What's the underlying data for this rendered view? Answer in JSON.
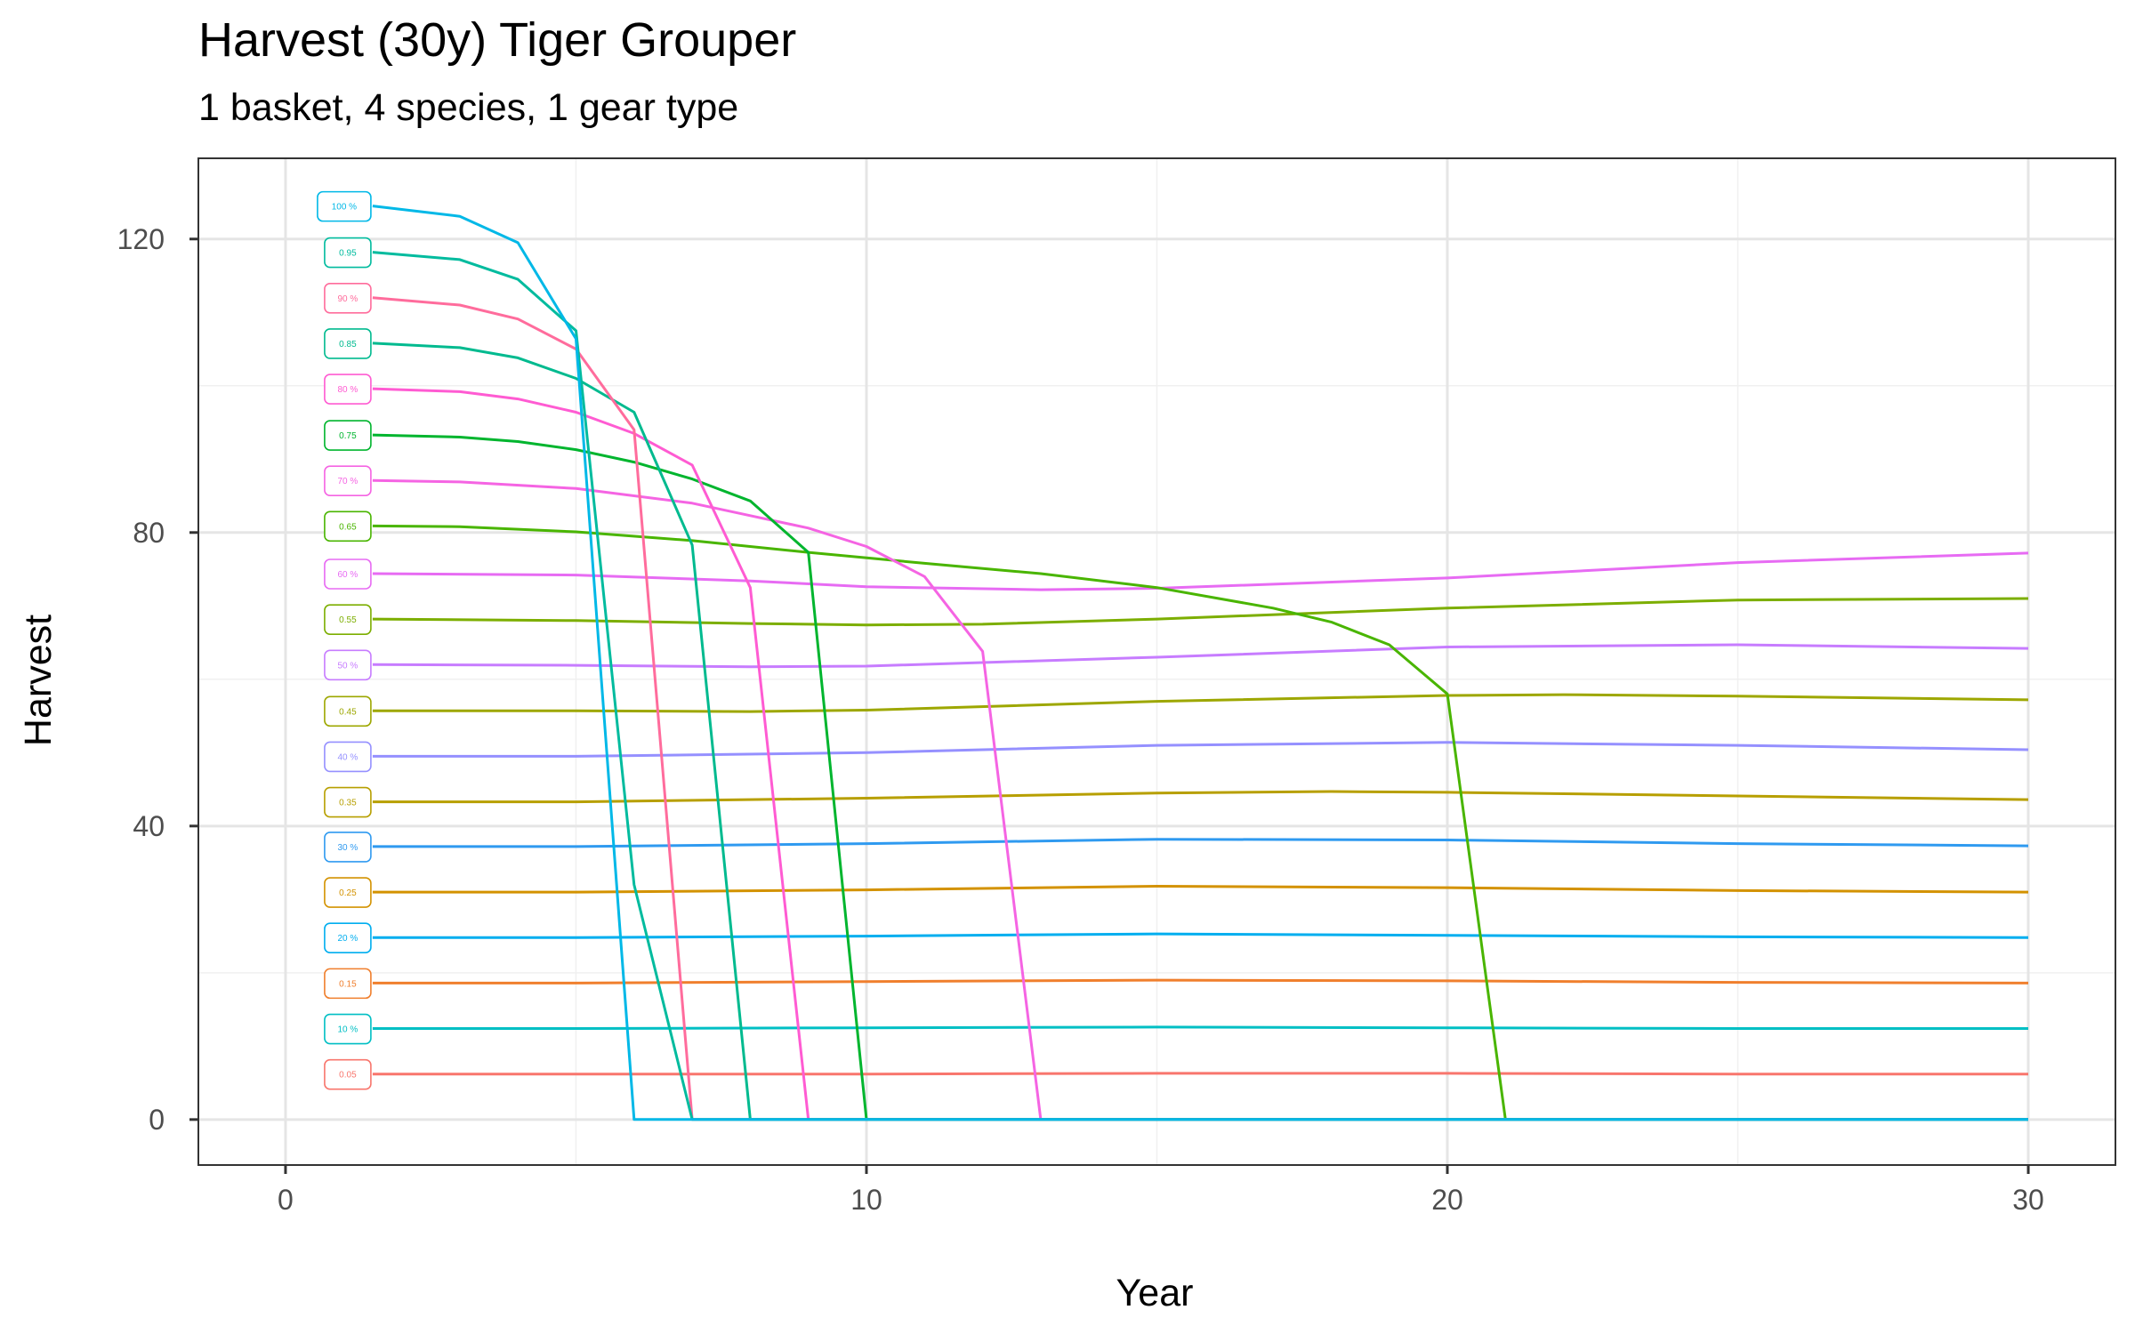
{
  "chart_data": {
    "type": "line",
    "title": "Harvest (30y) Tiger Grouper",
    "subtitle": "1 basket, 4 species, 1 gear type",
    "xlabel": "Year",
    "ylabel": "Harvest",
    "xlim": [
      -1.5,
      31.5
    ],
    "ylim": [
      -6.2,
      131
    ],
    "xticks": [
      0,
      10,
      20,
      30
    ],
    "yticks": [
      0,
      40,
      80,
      120
    ],
    "grid": true,
    "legend": "none",
    "series": [
      {
        "name": "0.05",
        "label": "0.05",
        "color": "#F8766D",
        "x": [
          1.5,
          5,
          10,
          15,
          20,
          25,
          30
        ],
        "y": [
          6.2,
          6.2,
          6.2,
          6.3,
          6.3,
          6.2,
          6.2
        ]
      },
      {
        "name": "10 %",
        "label": "10 %",
        "color": "#00BFC4",
        "x": [
          1.5,
          5,
          10,
          15,
          20,
          25,
          30
        ],
        "y": [
          12.4,
          12.4,
          12.5,
          12.6,
          12.5,
          12.4,
          12.4
        ]
      },
      {
        "name": "0.15",
        "label": "0.15",
        "color": "#F07F2D",
        "x": [
          1.5,
          5,
          10,
          15,
          20,
          25,
          30
        ],
        "y": [
          18.6,
          18.6,
          18.8,
          19.0,
          18.9,
          18.7,
          18.6
        ]
      },
      {
        "name": "20 %",
        "label": "20 %",
        "color": "#00AEEF",
        "x": [
          1.5,
          5,
          10,
          15,
          20,
          25,
          30
        ],
        "y": [
          24.8,
          24.8,
          25.0,
          25.3,
          25.1,
          24.9,
          24.8
        ]
      },
      {
        "name": "0.25",
        "label": "0.25",
        "color": "#D39200",
        "x": [
          1.5,
          5,
          10,
          15,
          20,
          25,
          30
        ],
        "y": [
          31.0,
          31.0,
          31.3,
          31.8,
          31.6,
          31.2,
          31.0
        ]
      },
      {
        "name": "30 %",
        "label": "30 %",
        "color": "#2F9AF0",
        "x": [
          1.5,
          5,
          10,
          15,
          20,
          25,
          30
        ],
        "y": [
          37.2,
          37.2,
          37.6,
          38.2,
          38.1,
          37.6,
          37.3
        ]
      },
      {
        "name": "0.35",
        "label": "0.35",
        "color": "#B79F00",
        "x": [
          1.5,
          5,
          10,
          15,
          18,
          20,
          25,
          30
        ],
        "y": [
          43.3,
          43.3,
          43.8,
          44.5,
          44.7,
          44.6,
          44.1,
          43.6
        ]
      },
      {
        "name": "40 %",
        "label": "40 %",
        "color": "#9590FF",
        "x": [
          1.5,
          5,
          10,
          15,
          20,
          25,
          30
        ],
        "y": [
          49.5,
          49.5,
          50.0,
          51.0,
          51.4,
          51.0,
          50.4
        ]
      },
      {
        "name": "0.45",
        "label": "0.45",
        "color": "#9DA700",
        "x": [
          1.5,
          5,
          8,
          10,
          15,
          20,
          22,
          25,
          30
        ],
        "y": [
          55.7,
          55.7,
          55.6,
          55.8,
          57.0,
          57.8,
          57.9,
          57.7,
          57.2
        ]
      },
      {
        "name": "50 %",
        "label": "50 %",
        "color": "#C77CFF",
        "x": [
          1.5,
          5,
          8,
          10,
          15,
          20,
          25,
          30
        ],
        "y": [
          62.0,
          61.9,
          61.7,
          61.8,
          63.0,
          64.4,
          64.7,
          64.2
        ]
      },
      {
        "name": "0.55",
        "label": "0.55",
        "color": "#7CAE00",
        "x": [
          1.5,
          5,
          8,
          10,
          12,
          15,
          20,
          25,
          30
        ],
        "y": [
          68.2,
          68.0,
          67.6,
          67.4,
          67.5,
          68.2,
          69.7,
          70.8,
          71.0
        ]
      },
      {
        "name": "60 %",
        "label": "60 %",
        "color": "#E76BF3",
        "x": [
          1.5,
          5,
          8,
          10,
          13,
          15,
          20,
          25,
          30
        ],
        "y": [
          74.4,
          74.2,
          73.4,
          72.6,
          72.2,
          72.4,
          73.8,
          75.9,
          77.2
        ]
      },
      {
        "name": "0.65",
        "label": "0.65",
        "color": "#49B500",
        "x": [
          1.5,
          3,
          5,
          7,
          9,
          11,
          13,
          15,
          17,
          18,
          19,
          20,
          21,
          22,
          25,
          30
        ],
        "y": [
          80.9,
          80.8,
          80.1,
          78.9,
          77.3,
          75.8,
          74.4,
          72.5,
          69.7,
          67.8,
          64.7,
          58.0,
          0,
          0,
          0,
          0
        ]
      },
      {
        "name": "70 %",
        "label": "70 %",
        "color": "#F564E3",
        "x": [
          1.5,
          3,
          5,
          7,
          8,
          9,
          10,
          11,
          12,
          13,
          14,
          15,
          20,
          25,
          30
        ],
        "y": [
          87.1,
          86.9,
          86.0,
          84.0,
          82.3,
          80.6,
          78.1,
          74.0,
          63.8,
          0,
          0,
          0,
          0,
          0,
          0
        ]
      },
      {
        "name": "0.75",
        "label": "0.75",
        "color": "#00B52E",
        "x": [
          1.5,
          3,
          4,
          5,
          6,
          7,
          8,
          9,
          10,
          11,
          15,
          20,
          25,
          30
        ],
        "y": [
          93.3,
          93.0,
          92.4,
          91.3,
          89.6,
          87.3,
          84.3,
          77.3,
          0,
          0,
          0,
          0,
          0,
          0
        ]
      },
      {
        "name": "80 %",
        "label": "80 %",
        "color": "#FF5BD2",
        "x": [
          1.5,
          3,
          4,
          5,
          6,
          7,
          8,
          9,
          10,
          15,
          20,
          25,
          30
        ],
        "y": [
          99.6,
          99.2,
          98.2,
          96.4,
          93.5,
          89.2,
          72.5,
          0,
          0,
          0,
          0,
          0,
          0
        ]
      },
      {
        "name": "0.85",
        "label": "0.85",
        "color": "#00BA8F",
        "x": [
          1.5,
          3,
          4,
          5,
          6,
          7,
          8,
          10,
          15,
          20,
          25,
          30
        ],
        "y": [
          105.8,
          105.2,
          103.8,
          101.0,
          96.4,
          78.3,
          0,
          0,
          0,
          0,
          0,
          0
        ]
      },
      {
        "name": "90 %",
        "label": "90 %",
        "color": "#FF6C9C",
        "x": [
          1.5,
          3,
          4,
          5,
          6,
          7,
          8,
          10,
          15,
          20,
          25,
          30
        ],
        "y": [
          112.0,
          111.0,
          109.1,
          105.0,
          94.0,
          0,
          0,
          0,
          0,
          0,
          0,
          0
        ]
      },
      {
        "name": "0.95",
        "label": "0.95",
        "color": "#00BB9E",
        "x": [
          1.5,
          3,
          4,
          5,
          6,
          7,
          8,
          10,
          15,
          20,
          25,
          30
        ],
        "y": [
          118.2,
          117.2,
          114.5,
          107.5,
          32.0,
          0,
          0,
          0,
          0,
          0,
          0,
          0
        ]
      },
      {
        "name": "100 %",
        "label": "100 %",
        "color": "#00B8E7",
        "x": [
          1.5,
          3,
          4,
          5,
          6,
          7,
          8,
          10,
          15,
          20,
          25,
          30
        ],
        "y": [
          124.5,
          123.1,
          119.5,
          106.4,
          0,
          0,
          0,
          0,
          0,
          0,
          0,
          0
        ]
      }
    ]
  }
}
